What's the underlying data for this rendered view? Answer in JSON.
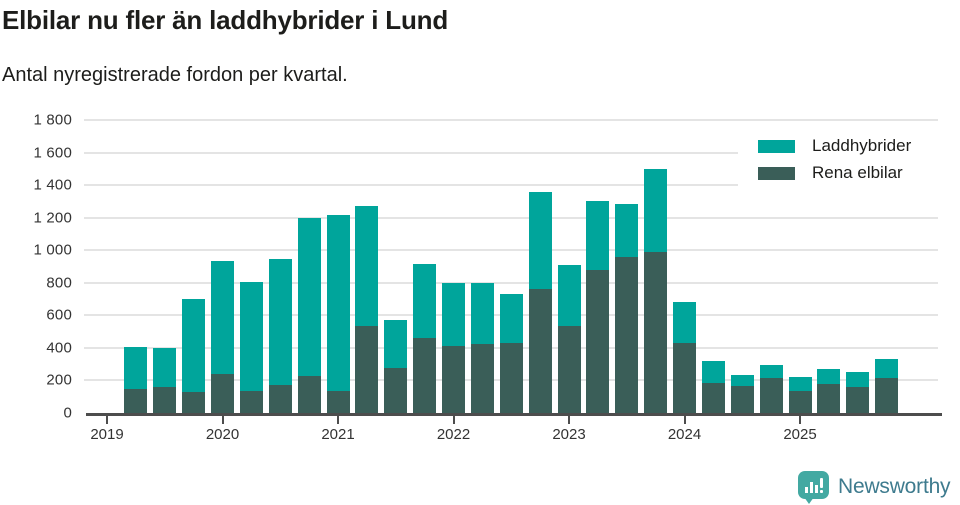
{
  "header": {
    "title": "Elbilar nu fler än laddhybrider i Lund",
    "subtitle": "Antal nyregistrerade fordon per kvartal."
  },
  "colors": {
    "laddhybrider": "#00a59b",
    "rena_elbilar": "#3a5e58",
    "grid": "#e4e4e4",
    "axis": "#4d4d4d",
    "text": "#1d1d1b",
    "logo_teal": "#43a9a2",
    "logo_text": "#3e7b8e"
  },
  "legend": {
    "items": [
      {
        "label": "Laddhybrider",
        "color_key": "laddhybrider"
      },
      {
        "label": "Rena elbilar",
        "color_key": "rena_elbilar"
      }
    ]
  },
  "chart_data": {
    "type": "bar",
    "stacked": true,
    "title": "Elbilar nu fler än laddhybrider i Lund",
    "subtitle": "Antal nyregistrerade fordon per kvartal.",
    "xlabel": "",
    "ylabel": "",
    "ylim": [
      0,
      1800
    ],
    "grid": true,
    "legend_position": "top-right",
    "categories": [
      "2019 Q2",
      "2019 Q3",
      "2019 Q4",
      "2020 Q1",
      "2020 Q2",
      "2020 Q3",
      "2020 Q4",
      "2021 Q1",
      "2021 Q2",
      "2021 Q3",
      "2021 Q4",
      "2022 Q1",
      "2022 Q2",
      "2022 Q3",
      "2022 Q4",
      "2023 Q1",
      "2023 Q2",
      "2023 Q3",
      "2023 Q4",
      "2024 Q1",
      "2024 Q2",
      "2024 Q3",
      "2024 Q4",
      "2025 Q1",
      "2025 Q2",
      "2025 Q3",
      "2025 Q4"
    ],
    "series": [
      {
        "name": "Rena elbilar",
        "color_key": "rena_elbilar",
        "values": [
          145,
          160,
          125,
          235,
          130,
          170,
          225,
          130,
          535,
          275,
          460,
          410,
          420,
          425,
          760,
          530,
          880,
          960,
          985,
          425,
          180,
          165,
          210,
          135,
          175,
          160,
          215
        ]
      },
      {
        "name": "Laddhybrider",
        "color_key": "laddhybrider",
        "values": [
          260,
          235,
          575,
          695,
          675,
          775,
          975,
          1085,
          735,
          295,
          455,
          390,
          375,
          305,
          600,
          375,
          420,
          325,
          515,
          255,
          135,
          65,
          80,
          85,
          95,
          90,
          115
        ]
      }
    ],
    "totals": [
      405,
      395,
      700,
      930,
      805,
      945,
      1200,
      1215,
      1270,
      570,
      915,
      800,
      795,
      730,
      1360,
      905,
      1300,
      1285,
      1500,
      680,
      315,
      230,
      290,
      220,
      270,
      250,
      330
    ],
    "y_ticks": [
      {
        "value": 0,
        "label": "0"
      },
      {
        "value": 200,
        "label": "200"
      },
      {
        "value": 400,
        "label": "400"
      },
      {
        "value": 600,
        "label": "600"
      },
      {
        "value": 800,
        "label": "800"
      },
      {
        "value": 1000,
        "label": "1 000"
      },
      {
        "value": 1200,
        "label": "1 200"
      },
      {
        "value": 1400,
        "label": "1 400"
      },
      {
        "value": 1600,
        "label": "1 600"
      },
      {
        "value": 1800,
        "label": "1 800"
      }
    ],
    "x_ticks": [
      {
        "year": 2019,
        "label": "2019"
      },
      {
        "year": 2020,
        "label": "2020"
      },
      {
        "year": 2021,
        "label": "2021"
      },
      {
        "year": 2022,
        "label": "2022"
      },
      {
        "year": 2023,
        "label": "2023"
      },
      {
        "year": 2024,
        "label": "2024"
      },
      {
        "year": 2025,
        "label": "2025"
      }
    ]
  },
  "footer": {
    "brand": "Newsworthy"
  }
}
